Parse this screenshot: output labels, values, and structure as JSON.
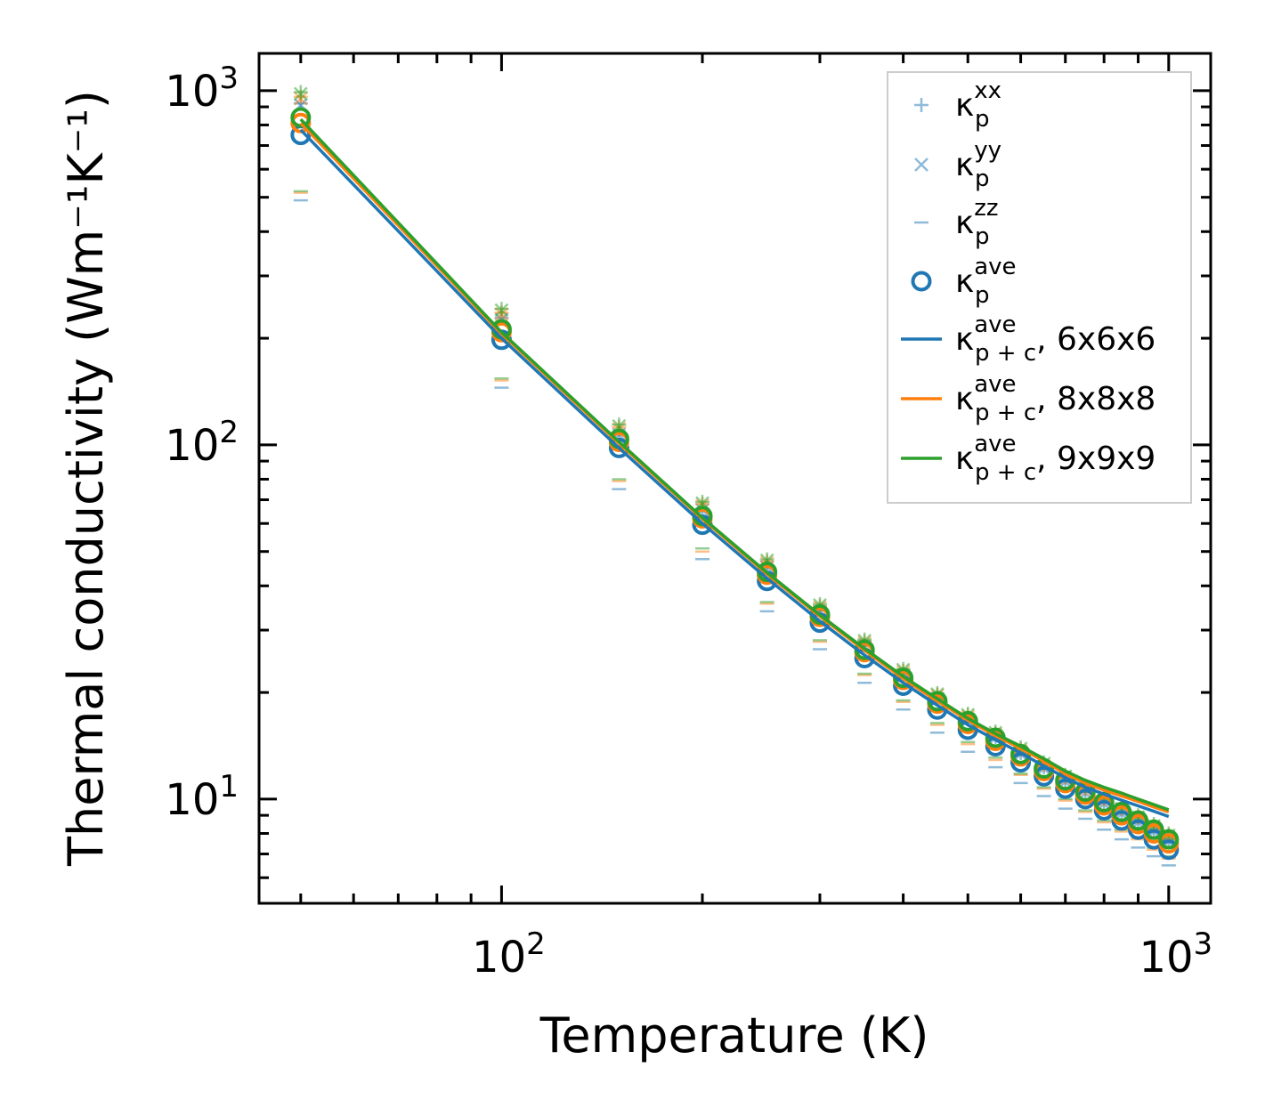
{
  "chart_data": {
    "type": "line",
    "title": "",
    "xlabel": "Temperature (K)",
    "ylabel": "Thermal conductivity (Wm⁻¹K⁻¹)",
    "xscale": "log",
    "yscale": "log",
    "xlim": [
      43.3,
      1156
    ],
    "ylim": [
      5.08,
      1274
    ],
    "x_ticks": [
      {
        "base": "10",
        "exp": "2",
        "value": 100
      },
      {
        "base": "10",
        "exp": "3",
        "value": 1000
      }
    ],
    "y_ticks": [
      {
        "base": "10",
        "exp": "1",
        "value": 10
      },
      {
        "base": "10",
        "exp": "2",
        "value": 100
      },
      {
        "base": "10",
        "exp": "3",
        "value": 1000
      }
    ],
    "grid": false,
    "legend_placement": "top-right",
    "colors": {
      "6x6x6": "#1f77b4",
      "8x8x8": "#ff7f0e",
      "9x9x9": "#2ca02c"
    },
    "x": [
      50,
      100,
      150,
      200,
      250,
      300,
      350,
      400,
      450,
      500,
      550,
      600,
      650,
      700,
      750,
      800,
      850,
      900,
      950,
      1000
    ],
    "meshes": [
      {
        "name": "6x6x6",
        "color": "#1f77b4",
        "kp_xx": [
          920,
          228,
          108,
          66,
          45.5,
          34,
          27.1,
          22.4,
          19.2,
          16.8,
          15,
          13.5,
          12.3,
          11.3,
          10.5,
          9.8,
          9.2,
          8.7,
          8.2,
          7.7
        ],
        "kp_yy": [
          910,
          226,
          107,
          65.5,
          45.2,
          33.8,
          27,
          22.3,
          19.1,
          16.7,
          14.9,
          13.4,
          12.2,
          11.2,
          10.4,
          9.7,
          9.1,
          8.6,
          8.1,
          7.6
        ],
        "kp_zz": [
          490,
          145,
          75,
          47.6,
          33.9,
          26.5,
          21.3,
          17.9,
          15.4,
          13.6,
          12.3,
          11.1,
          10.2,
          9.4,
          8.8,
          8.2,
          7.7,
          7.3,
          6.9,
          6.5
        ],
        "kp_ave": [
          750,
          198,
          98,
          59.5,
          41.3,
          31.5,
          25,
          20.9,
          17.9,
          15.7,
          14.1,
          12.7,
          11.6,
          10.7,
          10,
          9.3,
          8.7,
          8.2,
          7.7,
          7.2
        ],
        "kpc_ave": [
          775,
          200,
          98,
          60,
          42,
          31.8,
          25.5,
          21.3,
          18.4,
          16.2,
          14.7,
          13.5,
          12.4,
          11.5,
          10.8,
          10.33,
          9.93,
          9.57,
          9.24,
          8.93
        ]
      },
      {
        "name": "8x8x8",
        "color": "#ff7f0e",
        "kp_xx": [
          960,
          236,
          112,
          68,
          46.8,
          35,
          27.8,
          23,
          19.7,
          17.2,
          15.3,
          13.8,
          12.5,
          11.5,
          10.7,
          10,
          9.4,
          8.9,
          8.4,
          7.9
        ],
        "kp_yy": [
          950,
          234,
          111,
          67.5,
          46.5,
          34.8,
          27.6,
          22.9,
          19.6,
          17.1,
          15.2,
          13.7,
          12.4,
          11.4,
          10.6,
          9.9,
          9.3,
          8.8,
          8.3,
          7.8
        ],
        "kp_zz": [
          515,
          152,
          79,
          50,
          35.6,
          27.8,
          22.4,
          18.8,
          16.2,
          14.3,
          12.9,
          11.7,
          10.7,
          9.9,
          9.2,
          8.6,
          8.1,
          7.7,
          7.2,
          6.8
        ],
        "kp_ave": [
          810,
          208,
          102,
          62,
          43,
          32.7,
          26,
          21.7,
          18.6,
          16.3,
          14.6,
          13.2,
          12,
          11.1,
          10.3,
          9.6,
          9,
          8.5,
          8,
          7.5
        ],
        "kpc_ave": [
          810,
          206,
          101,
          61.8,
          43.2,
          32.8,
          26.3,
          21.9,
          18.9,
          16.7,
          15.1,
          13.9,
          12.8,
          11.8,
          11.1,
          10.6,
          10.2,
          9.85,
          9.5,
          9.2
        ]
      },
      {
        "name": "9x9x9",
        "color": "#2ca02c",
        "kp_xx": [
          990,
          242,
          114,
          69,
          47.5,
          35.5,
          28.2,
          23.3,
          19.9,
          17.4,
          15.5,
          14,
          12.7,
          11.7,
          10.9,
          10.2,
          9.5,
          9,
          8.5,
          8
        ],
        "kp_yy": [
          980,
          240,
          113,
          68.5,
          47.2,
          35.3,
          28,
          23.2,
          19.8,
          17.3,
          15.4,
          13.9,
          12.6,
          11.6,
          10.8,
          10.1,
          9.4,
          8.9,
          8.4,
          7.9
        ],
        "kp_zz": [
          520,
          154,
          80,
          51,
          36,
          28.1,
          22.6,
          19,
          16.4,
          14.5,
          13.1,
          11.8,
          10.8,
          10,
          9.3,
          8.7,
          8.2,
          7.8,
          7.3,
          6.9
        ],
        "kp_ave": [
          840,
          212,
          104,
          63,
          43.8,
          33.2,
          26.4,
          22,
          18.9,
          16.6,
          14.9,
          13.4,
          12.2,
          11.3,
          10.5,
          9.8,
          9.2,
          8.7,
          8.2,
          7.7
        ],
        "kpc_ave": [
          830,
          208,
          102,
          62.3,
          43.6,
          33.1,
          26.6,
          22.2,
          19.2,
          16.9,
          15.3,
          14.1,
          13,
          12,
          11.3,
          10.8,
          10.4,
          10,
          9.65,
          9.33
        ]
      }
    ],
    "legend": [
      {
        "symbol": "κ",
        "sub": "p",
        "sup": "xx",
        "suffix": "",
        "marker": "plus"
      },
      {
        "symbol": "κ",
        "sub": "p",
        "sup": "yy",
        "suffix": "",
        "marker": "cross"
      },
      {
        "symbol": "κ",
        "sub": "p",
        "sup": "zz",
        "suffix": "",
        "marker": "dash"
      },
      {
        "symbol": "κ",
        "sub": "p",
        "sup": "ave",
        "suffix": "",
        "marker": "circle"
      },
      {
        "symbol": "κ",
        "sub": "p + c",
        "sup": "ave",
        "suffix": ", 6x6x6",
        "marker": "line",
        "color": "#1f77b4"
      },
      {
        "symbol": "κ",
        "sub": "p + c",
        "sup": "ave",
        "suffix": ", 8x8x8",
        "marker": "line",
        "color": "#ff7f0e"
      },
      {
        "symbol": "κ",
        "sub": "p + c",
        "sup": "ave",
        "suffix": ", 9x9x9",
        "marker": "line",
        "color": "#2ca02c"
      }
    ]
  }
}
